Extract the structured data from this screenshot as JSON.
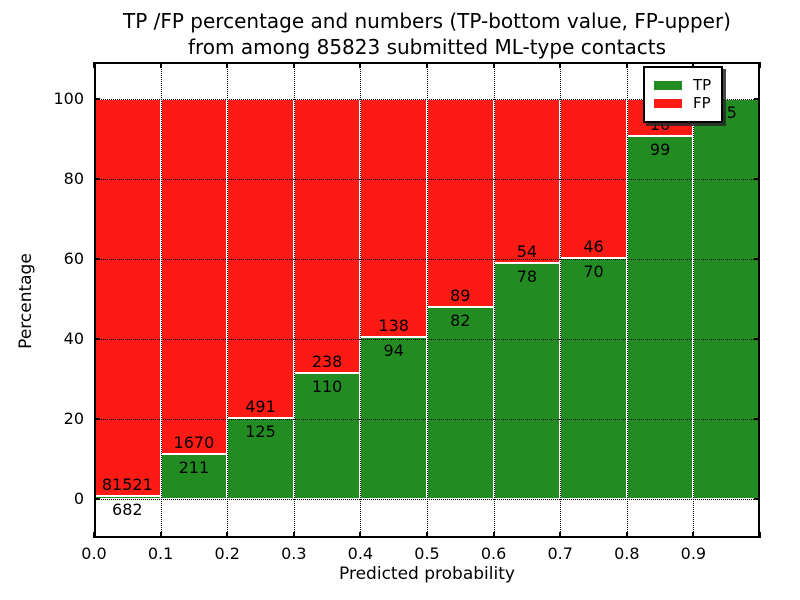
{
  "title": {
    "line1": "TP /FP percentage and numbers (TP-bottom value, FP-upper)",
    "line2": "from among 85823 submitted ML-type contacts"
  },
  "axes": {
    "x_label": "Predicted probability",
    "y_label": "Percentage"
  },
  "legend": {
    "items": [
      {
        "label": "TP",
        "color": "#228B22"
      },
      {
        "label": "FP",
        "color": "#FC1A15"
      }
    ]
  },
  "chart_data": {
    "type": "bar",
    "stacked": true,
    "normalized_to_percent": true,
    "title": "TP /FP percentage and numbers (TP-bottom value, FP-upper) from among 85823 submitted ML-type contacts",
    "xlabel": "Predicted probability",
    "ylabel": "Percentage",
    "total_contacts": 85823,
    "categories": [
      "0.0-0.1",
      "0.1-0.2",
      "0.2-0.3",
      "0.3-0.4",
      "0.4-0.5",
      "0.5-0.6",
      "0.6-0.7",
      "0.7-0.8",
      "0.8-0.9",
      "0.9-1.0"
    ],
    "series": [
      {
        "name": "TP",
        "color": "#228B22",
        "counts": [
          682,
          211,
          125,
          110,
          94,
          82,
          78,
          70,
          99,
          15
        ]
      },
      {
        "name": "FP",
        "color": "#FC1A15",
        "counts": [
          81521,
          1670,
          491,
          238,
          138,
          89,
          54,
          46,
          10,
          0
        ]
      }
    ],
    "tp_percent": [
      0.8,
      11.2,
      20.3,
      31.6,
      40.5,
      48.0,
      59.1,
      60.3,
      90.8,
      100.0
    ],
    "bar_labels": {
      "tp": [
        "682",
        "211",
        "125",
        "110",
        "94",
        "82",
        "78",
        "70",
        "99",
        "15"
      ],
      "fp": [
        "81521",
        "1670",
        "491",
        "238",
        "138",
        "89",
        "54",
        "46",
        "10",
        ""
      ]
    },
    "x_ticks": [
      "0.0",
      "0.1",
      "0.2",
      "0.3",
      "0.4",
      "0.5",
      "0.6",
      "0.7",
      "0.8",
      "0.9"
    ],
    "y_ticks": [
      0,
      20,
      40,
      60,
      80,
      100
    ],
    "xlim": [
      0.0,
      1.0
    ],
    "ylim": [
      -9.75,
      109.25
    ],
    "grid": "dotted",
    "legend_position": "upper-right"
  }
}
